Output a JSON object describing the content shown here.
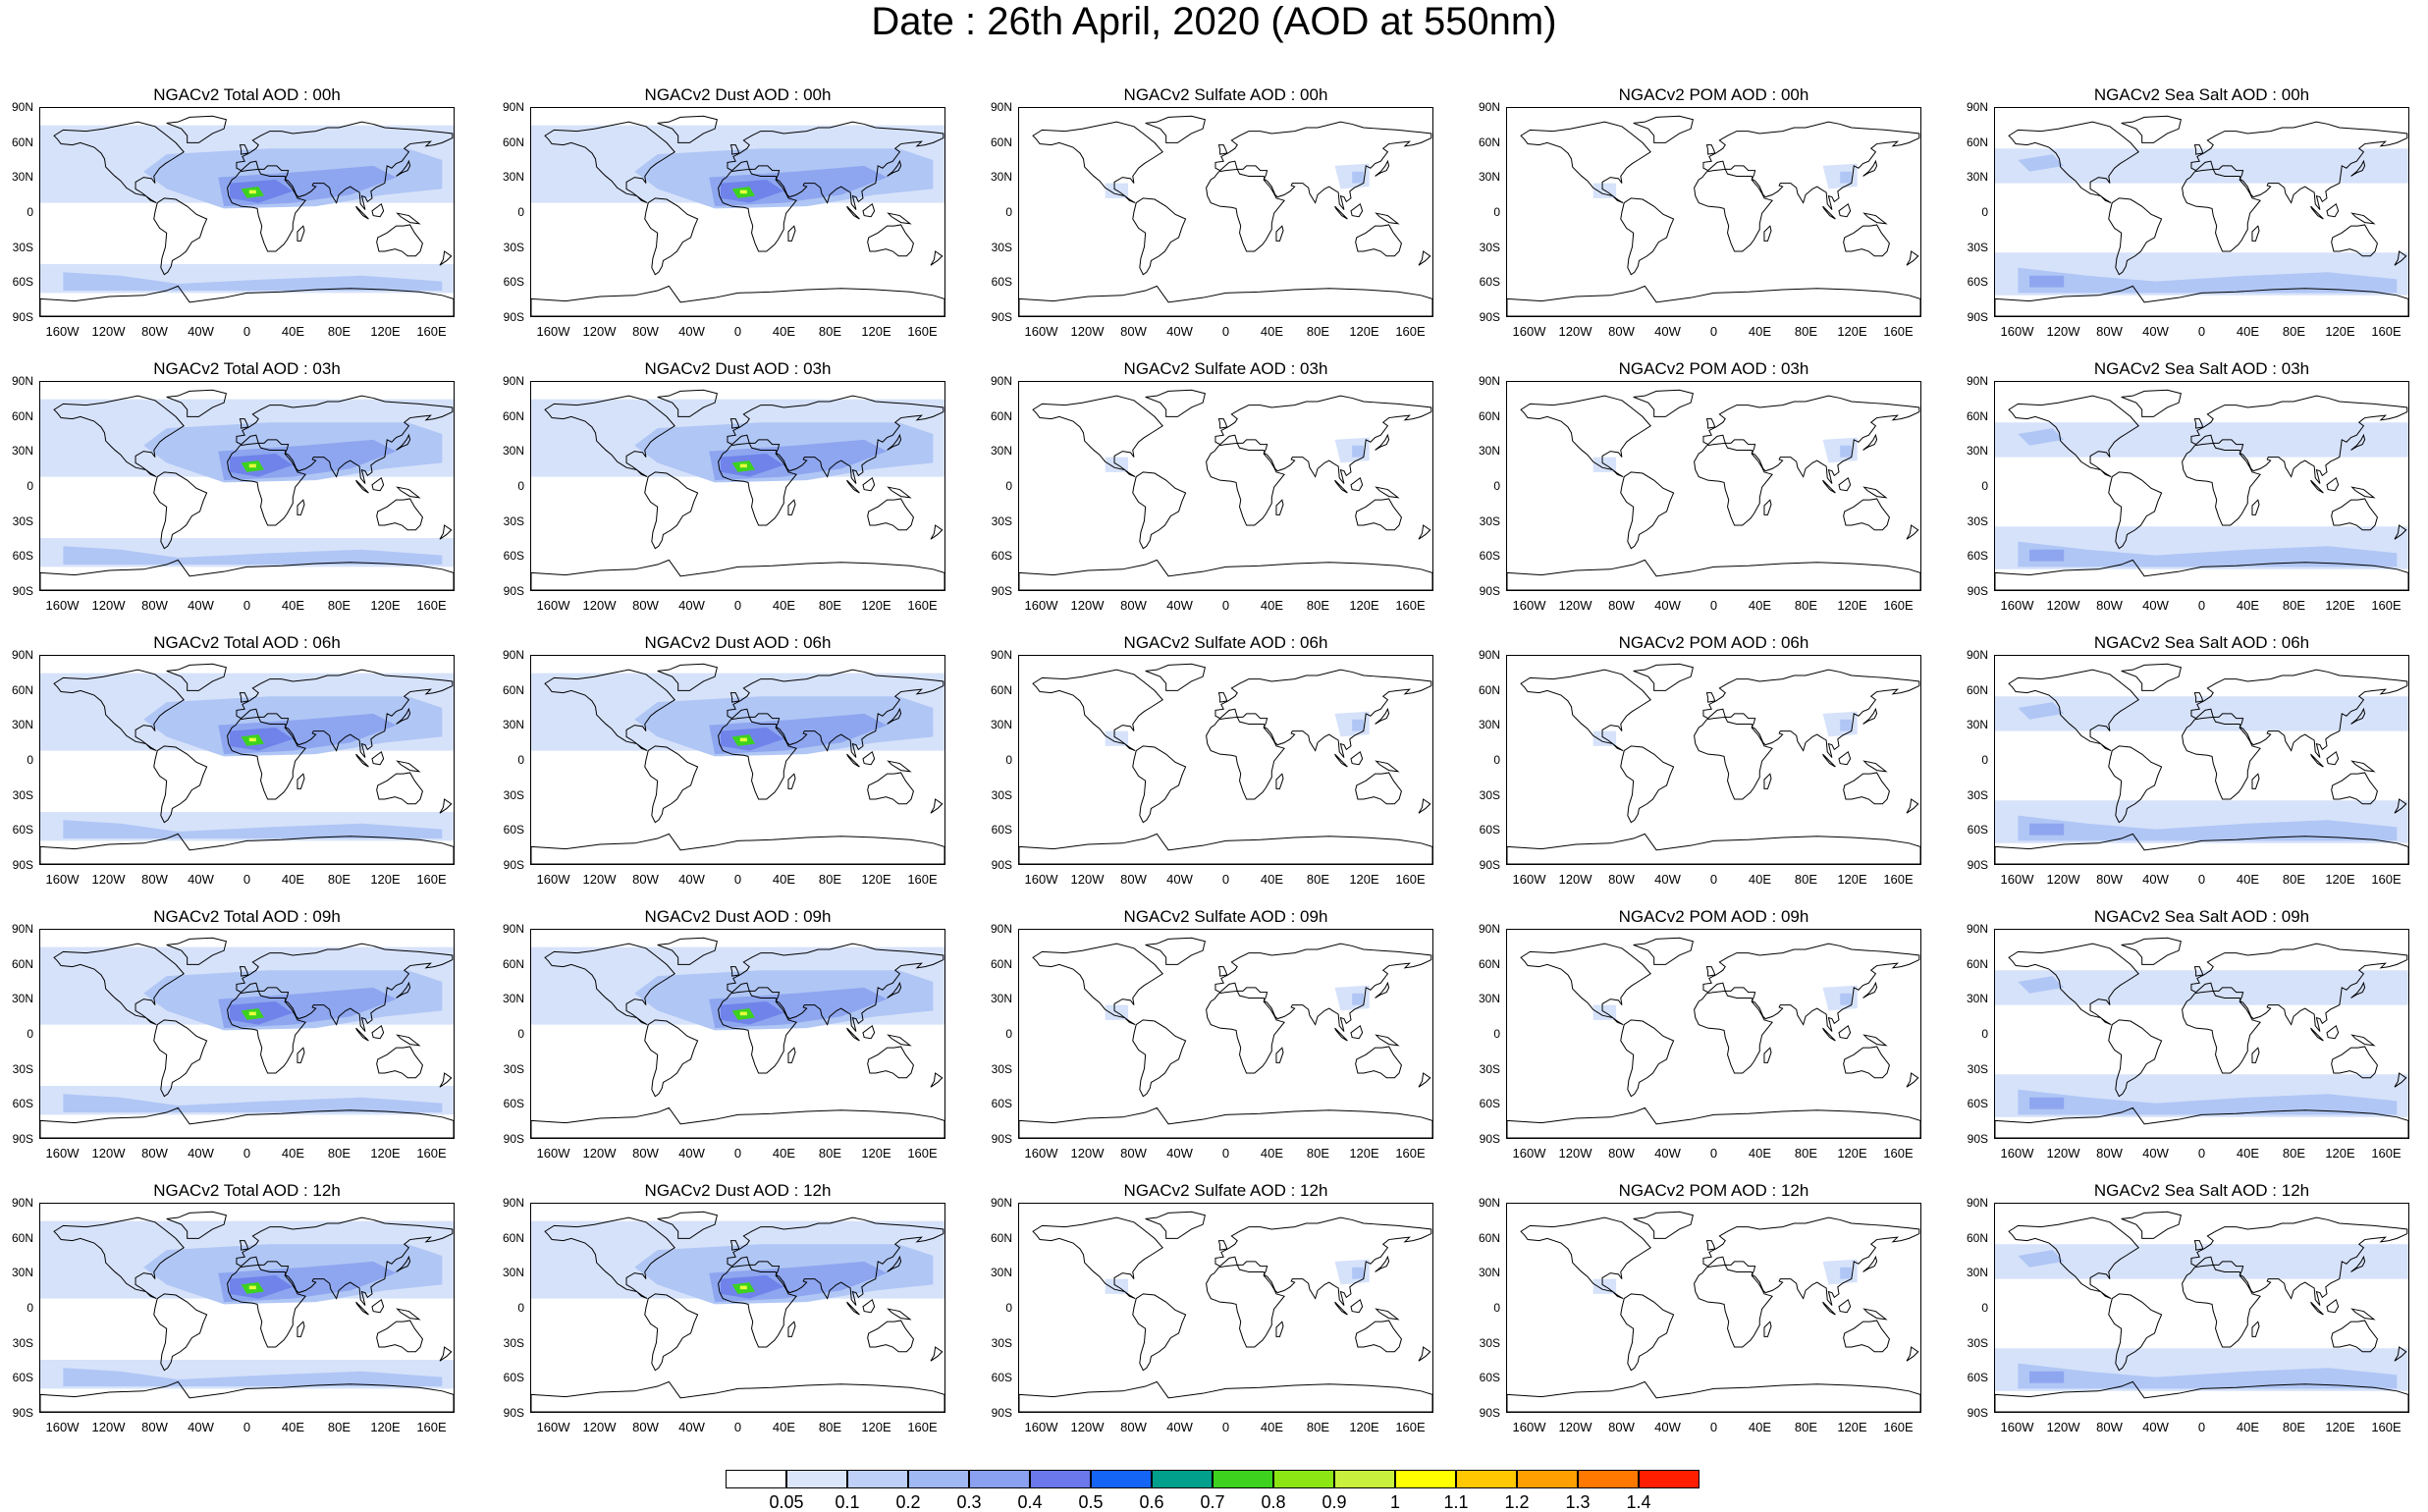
{
  "title": "Date : 26th April, 2020 (AOD at 550nm)",
  "rows": [
    [
      "NGACv2 Total AOD : 00h",
      "NGACv2 Dust AOD : 00h",
      "NGACv2 Sulfate AOD : 00h",
      "NGACv2 POM AOD : 00h",
      "NGACv2 Sea Salt AOD : 00h"
    ],
    [
      "NGACv2 Total AOD : 03h",
      "NGACv2 Dust AOD : 03h",
      "NGACv2 Sulfate AOD : 03h",
      "NGACv2 POM AOD : 03h",
      "NGACv2 Sea Salt AOD : 03h"
    ],
    [
      "NGACv2 Total AOD : 06h",
      "NGACv2 Dust AOD : 06h",
      "NGACv2 Sulfate AOD : 06h",
      "NGACv2 POM AOD : 06h",
      "NGACv2 Sea Salt AOD : 06h"
    ],
    [
      "NGACv2 Total AOD : 09h",
      "NGACv2 Dust AOD : 09h",
      "NGACv2 Sulfate AOD : 09h",
      "NGACv2 POM AOD : 09h",
      "NGACv2 Sea Salt  AOD : 09h"
    ],
    [
      "NGACv2 Total AOD : 12h",
      "NGACv2 Dust AOD : 12h",
      "NGACv2 Sulfate AOD : 12h",
      "NGACv2 POM  AOD : 12h",
      "NGACv2 Sea Salt  AOD : 12h"
    ]
  ],
  "lat_labels": [
    "90N",
    "60N",
    "30N",
    "0",
    "30S",
    "60S",
    "90S"
  ],
  "lon_labels": [
    "160W",
    "120W",
    "80W",
    "40W",
    "0",
    "40E",
    "80E",
    "120E",
    "160E"
  ],
  "lon_values": [
    -160,
    -120,
    -80,
    -40,
    0,
    40,
    80,
    120,
    160
  ],
  "lat_values": [
    90,
    60,
    30,
    0,
    -30,
    -60,
    -90
  ],
  "colorbar": {
    "labels": [
      "0.05",
      "0.1",
      "0.2",
      "0.3",
      "0.4",
      "0.5",
      "0.6",
      "0.7",
      "0.8",
      "0.9",
      "1",
      "1.1",
      "1.2",
      "1.3",
      "1.4"
    ],
    "colors": [
      "#ffffff",
      "#dce6fb",
      "#bed0f7",
      "#a0b8f4",
      "#8aa0f0",
      "#6a78ec",
      "#1464f5",
      "#00a08c",
      "#3cd21e",
      "#8ce614",
      "#c8f03c",
      "#ffff00",
      "#ffc800",
      "#ffa000",
      "#ff7800",
      "#ff1e00"
    ]
  },
  "field_colors": {
    "light": "#d6e2fa",
    "mid": "#b0c6f5",
    "dark": "#8ea6ef",
    "deep": "#6f83ea",
    "green": "#3cd21e",
    "yellow": "#e6ff3c"
  }
}
